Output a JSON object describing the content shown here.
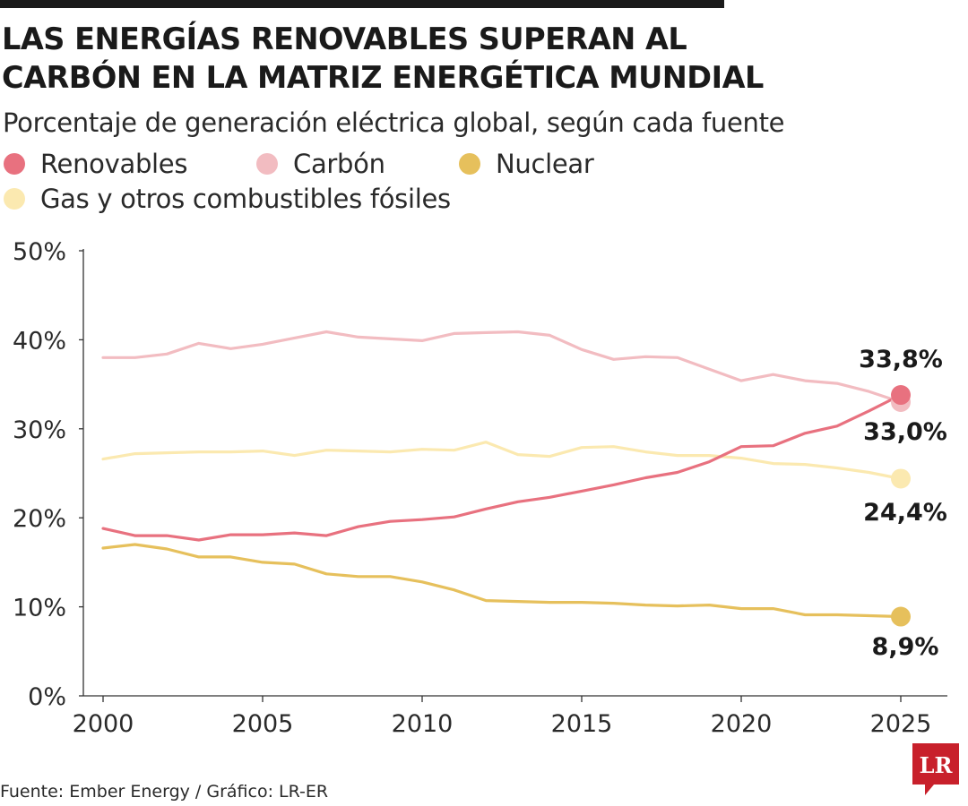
{
  "header": {
    "title_line1": "LAS ENERGÍAS RENOVABLES SUPERAN AL",
    "title_line2": "CARBÓN EN LA MATRIZ ENERGÉTICA MUNDIAL",
    "subtitle": "Porcentaje de generación eléctrica global, según cada fuente"
  },
  "legend": [
    {
      "label": "Renovables",
      "color": "#e8717f"
    },
    {
      "label": "Carbón",
      "color": "#f2bcc1"
    },
    {
      "label": "Nuclear",
      "color": "#e6c05c"
    },
    {
      "label": "Gas y otros combustibles fósiles",
      "color": "#fbe9b0"
    }
  ],
  "chart_data": {
    "type": "line",
    "x": [
      2000,
      2001,
      2002,
      2003,
      2004,
      2005,
      2006,
      2007,
      2008,
      2009,
      2010,
      2011,
      2012,
      2013,
      2014,
      2015,
      2016,
      2017,
      2018,
      2019,
      2020,
      2021,
      2022,
      2023,
      2024,
      2025
    ],
    "ylim": [
      0,
      50
    ],
    "y_ticks": [
      0,
      10,
      20,
      30,
      40,
      50
    ],
    "y_tick_labels": [
      "0%",
      "10%",
      "20%",
      "30%",
      "40%",
      "50%"
    ],
    "x_ticks": [
      2000,
      2005,
      2010,
      2015,
      2020,
      2025
    ],
    "x_tick_labels": [
      "2000",
      "2005",
      "2010",
      "2015",
      "2020",
      "2025"
    ],
    "grid": false,
    "series": [
      {
        "name": "Carbón",
        "color": "#f2bcc1",
        "values": [
          38.0,
          38.0,
          38.4,
          39.6,
          39.0,
          39.5,
          40.2,
          40.9,
          40.3,
          40.1,
          39.9,
          40.7,
          40.8,
          40.9,
          40.5,
          38.9,
          37.8,
          38.1,
          38.0,
          36.7,
          35.4,
          36.1,
          35.4,
          35.1,
          34.2,
          33.0
        ],
        "end_label": "33,0%"
      },
      {
        "name": "Gas y otros combustibles fósiles",
        "color": "#fbe9b0",
        "values": [
          26.6,
          27.2,
          27.3,
          27.4,
          27.4,
          27.5,
          27.0,
          27.6,
          27.5,
          27.4,
          27.7,
          27.6,
          28.5,
          27.1,
          26.9,
          27.9,
          28.0,
          27.4,
          27.0,
          27.0,
          26.7,
          26.1,
          26.0,
          25.6,
          25.1,
          24.4
        ],
        "end_label": "24,4%"
      },
      {
        "name": "Nuclear",
        "color": "#e6c05c",
        "values": [
          16.6,
          17.0,
          16.5,
          15.6,
          15.6,
          15.0,
          14.8,
          13.7,
          13.4,
          13.4,
          12.8,
          11.9,
          10.7,
          10.6,
          10.5,
          10.5,
          10.4,
          10.2,
          10.1,
          10.2,
          9.8,
          9.8,
          9.1,
          9.1,
          9.0,
          8.9
        ],
        "end_label": "8,9%"
      },
      {
        "name": "Renovables",
        "color": "#e8717f",
        "values": [
          18.8,
          18.0,
          18.0,
          17.5,
          18.1,
          18.1,
          18.3,
          18.0,
          19.0,
          19.6,
          19.8,
          20.1,
          21.0,
          21.8,
          22.3,
          23.0,
          23.7,
          24.5,
          25.1,
          26.3,
          28.0,
          28.1,
          29.5,
          30.3,
          32.0,
          33.8
        ],
        "end_label": "33,8%"
      }
    ]
  },
  "footer": {
    "source": "Fuente: Ember Energy / Gráfico: LR-ER",
    "logo_text": "LR"
  }
}
